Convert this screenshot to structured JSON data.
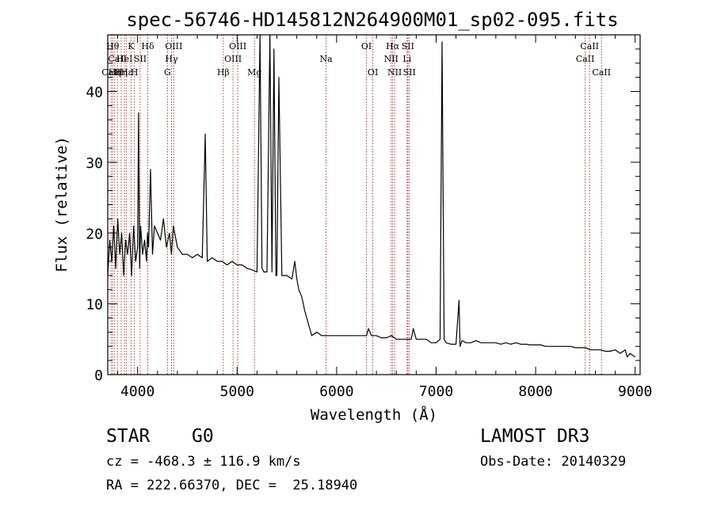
{
  "chart_data": {
    "type": "line",
    "title": "spec-56746-HD145812N264900M01_sp02-095.fits",
    "xlabel": "Wavelength (Å)",
    "ylabel": "Flux (relative)",
    "xlim": [
      3700,
      9050
    ],
    "ylim": [
      0,
      48
    ],
    "xticks": [
      4000,
      5000,
      6000,
      7000,
      8000,
      9000
    ],
    "yticks": [
      0,
      10,
      20,
      30,
      40
    ],
    "grid": false,
    "series": [
      {
        "color": "#000000",
        "x": [
          3700,
          3720,
          3740,
          3760,
          3780,
          3800,
          3820,
          3840,
          3860,
          3880,
          3900,
          3920,
          3940,
          3960,
          3980,
          4000,
          4010,
          4020,
          4030,
          4050,
          4070,
          4090,
          4100,
          4110,
          4130,
          4150,
          4170,
          4200,
          4230,
          4260,
          4290,
          4320,
          4340,
          4360,
          4400,
          4450,
          4500,
          4550,
          4600,
          4650,
          4680,
          4700,
          4750,
          4800,
          4850,
          4900,
          4950,
          5000,
          5050,
          5100,
          5150,
          5200,
          5230,
          5250,
          5270,
          5300,
          5330,
          5350,
          5370,
          5390,
          5400,
          5420,
          5450,
          5500,
          5550,
          5580,
          5600,
          5620,
          5650,
          5680,
          5700,
          5720,
          5750,
          5800,
          5850,
          5900,
          5950,
          6000,
          6050,
          6100,
          6150,
          6200,
          6250,
          6300,
          6320,
          6350,
          6400,
          6450,
          6500,
          6550,
          6600,
          6650,
          6700,
          6750,
          6770,
          6800,
          6850,
          6900,
          6950,
          7000,
          7040,
          7060,
          7080,
          7100,
          7150,
          7200,
          7230,
          7240,
          7260,
          7300,
          7350,
          7400,
          7450,
          7500,
          7550,
          7600,
          7650,
          7700,
          7750,
          7800,
          7850,
          7900,
          7950,
          8000,
          8050,
          8100,
          8150,
          8200,
          8250,
          8300,
          8350,
          8400,
          8450,
          8500,
          8550,
          8600,
          8650,
          8700,
          8750,
          8800,
          8850,
          8900,
          8920,
          8950,
          9000
        ],
        "y": [
          14,
          19,
          16,
          21,
          15,
          22,
          17,
          20,
          14,
          19,
          17,
          20,
          14,
          21,
          16,
          18,
          37,
          15,
          21,
          17,
          19,
          16,
          20,
          18,
          29,
          17,
          21,
          20,
          19,
          22,
          18,
          20,
          17,
          21,
          18,
          17,
          17,
          16.5,
          17,
          16.5,
          34,
          16,
          16.5,
          16,
          16,
          15.5,
          16,
          15.5,
          15.5,
          15,
          14.8,
          14.5,
          48,
          15,
          14.5,
          14.5,
          48,
          14.5,
          46,
          14,
          14,
          42,
          14,
          14,
          13.5,
          16,
          13.5,
          12,
          11,
          9,
          8,
          7,
          5.5,
          6,
          5.5,
          5.5,
          5.5,
          5.5,
          5.5,
          5.5,
          5.5,
          5.5,
          5.5,
          5.5,
          6.5,
          5.5,
          5.5,
          5.2,
          5.2,
          5.5,
          5,
          5,
          5,
          5,
          6.5,
          5,
          5,
          5,
          4.5,
          4.5,
          5,
          47,
          5,
          4.5,
          4.3,
          4.3,
          10.5,
          4,
          4.8,
          4.5,
          4.5,
          4.8,
          4.5,
          4.5,
          4.5,
          4.5,
          4.3,
          4.5,
          4.3,
          4.5,
          4.3,
          4.3,
          4.2,
          4.2,
          4.2,
          4,
          4,
          4,
          4,
          4,
          4,
          3.8,
          3.8,
          3.8,
          3.5,
          3.5,
          3.5,
          3.3,
          3.3,
          3.5,
          3,
          3.5,
          2.5,
          3,
          2.5
        ]
      }
    ],
    "lines": [
      {
        "x": 3734,
        "label": "CaII",
        "row": 3
      },
      {
        "x": 3750,
        "label": "Hθ",
        "row": 1
      },
      {
        "x": 3770,
        "label": "Hη",
        "row": 3
      },
      {
        "x": 3797,
        "label": "CaII",
        "row": 2
      },
      {
        "x": 3835,
        "label": "Hη",
        "row": 3
      },
      {
        "x": 3869,
        "label": "HeI",
        "row": 2
      },
      {
        "x": 3889,
        "label": "Hε",
        "row": 3
      },
      {
        "x": 3934,
        "label": "K",
        "row": 1
      },
      {
        "x": 3968,
        "label": "H",
        "row": 3
      },
      {
        "x": 4026,
        "label": "SII",
        "row": 2
      },
      {
        "x": 4102,
        "label": "Hδ",
        "row": 1
      },
      {
        "x": 4300,
        "label": "G",
        "row": 3
      },
      {
        "x": 4341,
        "label": "Hγ",
        "row": 2
      },
      {
        "x": 4363,
        "label": "OIII",
        "row": 1
      },
      {
        "x": 4861,
        "label": "Hβ",
        "row": 3
      },
      {
        "x": 4959,
        "label": "OIII",
        "row": 2
      },
      {
        "x": 5007,
        "label": "OIII",
        "row": 1
      },
      {
        "x": 5175,
        "label": "Mg",
        "row": 3
      },
      {
        "x": 5894,
        "label": "Na",
        "row": 2
      },
      {
        "x": 6300,
        "label": "OI",
        "row": 1
      },
      {
        "x": 6364,
        "label": "OI",
        "row": 3
      },
      {
        "x": 6548,
        "label": "NII",
        "row": 2
      },
      {
        "x": 6563,
        "label": "Hα",
        "row": 1
      },
      {
        "x": 6583,
        "label": "NII",
        "row": 3
      },
      {
        "x": 6708,
        "label": "Li",
        "row": 2
      },
      {
        "x": 6716,
        "label": "SII",
        "row": 1
      },
      {
        "x": 6731,
        "label": "SII",
        "row": 3
      },
      {
        "x": 8498,
        "label": "CaII",
        "row": 2
      },
      {
        "x": 8542,
        "label": "CaII",
        "row": 1
      },
      {
        "x": 8662,
        "label": "CaII",
        "row": 3
      }
    ],
    "line_color": "#b22222"
  },
  "info": {
    "class_label": "STAR",
    "subclass": "G0",
    "survey": "LAMOST DR3",
    "velocity": "cz = -468.3 ± 116.9 km/s",
    "obs_date": "Obs-Date: 20140329",
    "coords": "RA = 222.66370, DEC =  25.18940"
  }
}
